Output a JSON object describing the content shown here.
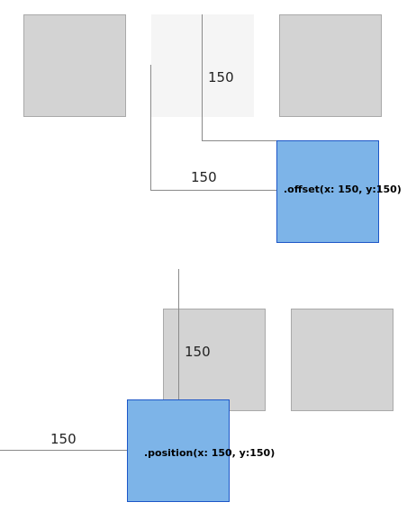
{
  "offset_example": {
    "distance_vertical": "150",
    "distance_horizontal": "150",
    "modifier_label": ".offset(x: 150, y:150)"
  },
  "position_example": {
    "distance_vertical": "150",
    "distance_horizontal": "150",
    "modifier_label": ".position(x: 150, y:150)"
  },
  "colors": {
    "box_fill": "#d3d3d3",
    "ghost_fill": "#f5f5f5",
    "blue_fill": "#7db4e8",
    "blue_border": "#1c56c7",
    "guide_line": "#8a8a8a"
  }
}
